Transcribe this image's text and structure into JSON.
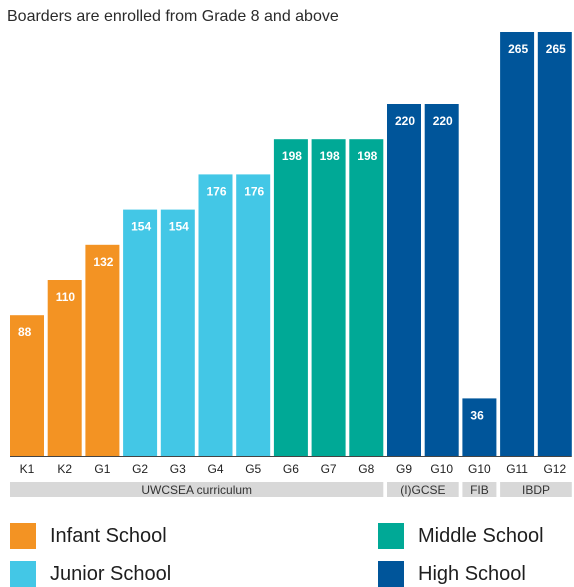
{
  "title": "",
  "subtitle": "Boarders are enrolled from Grade 8 and above",
  "colors": {
    "infant": "#f39323",
    "junior": "#43c7e6",
    "middle": "#00a996",
    "high": "#00559a",
    "group_band": "#d8d8d8",
    "axis": "#444444"
  },
  "chart_data": {
    "type": "bar",
    "title": "",
    "xlabel": "",
    "ylabel": "",
    "ylim": [
      0,
      275
    ],
    "grid": false,
    "legend_placement": "bottom",
    "categories": [
      "K1",
      "K2",
      "G1",
      "G2",
      "G3",
      "G4",
      "G5",
      "G6",
      "G7",
      "G8",
      "G9",
      "G10",
      "G10",
      "G11",
      "G12"
    ],
    "values": [
      88,
      110,
      132,
      154,
      154,
      176,
      176,
      198,
      198,
      198,
      220,
      220,
      36,
      265,
      265
    ],
    "school": [
      "infant",
      "infant",
      "infant",
      "junior",
      "junior",
      "junior",
      "junior",
      "middle",
      "middle",
      "middle",
      "high",
      "high",
      "high",
      "high",
      "high"
    ],
    "groups": [
      {
        "label": "UWCSEA curriculum",
        "start": 0,
        "end": 9
      },
      {
        "label": "(I)GCSE",
        "start": 10,
        "end": 11
      },
      {
        "label": "FIB",
        "start": 12,
        "end": 12
      },
      {
        "label": "IBDP",
        "start": 13,
        "end": 14
      }
    ]
  },
  "legend": {
    "infant": "Infant School",
    "junior": "Junior School",
    "middle": "Middle School",
    "high": "High School"
  }
}
